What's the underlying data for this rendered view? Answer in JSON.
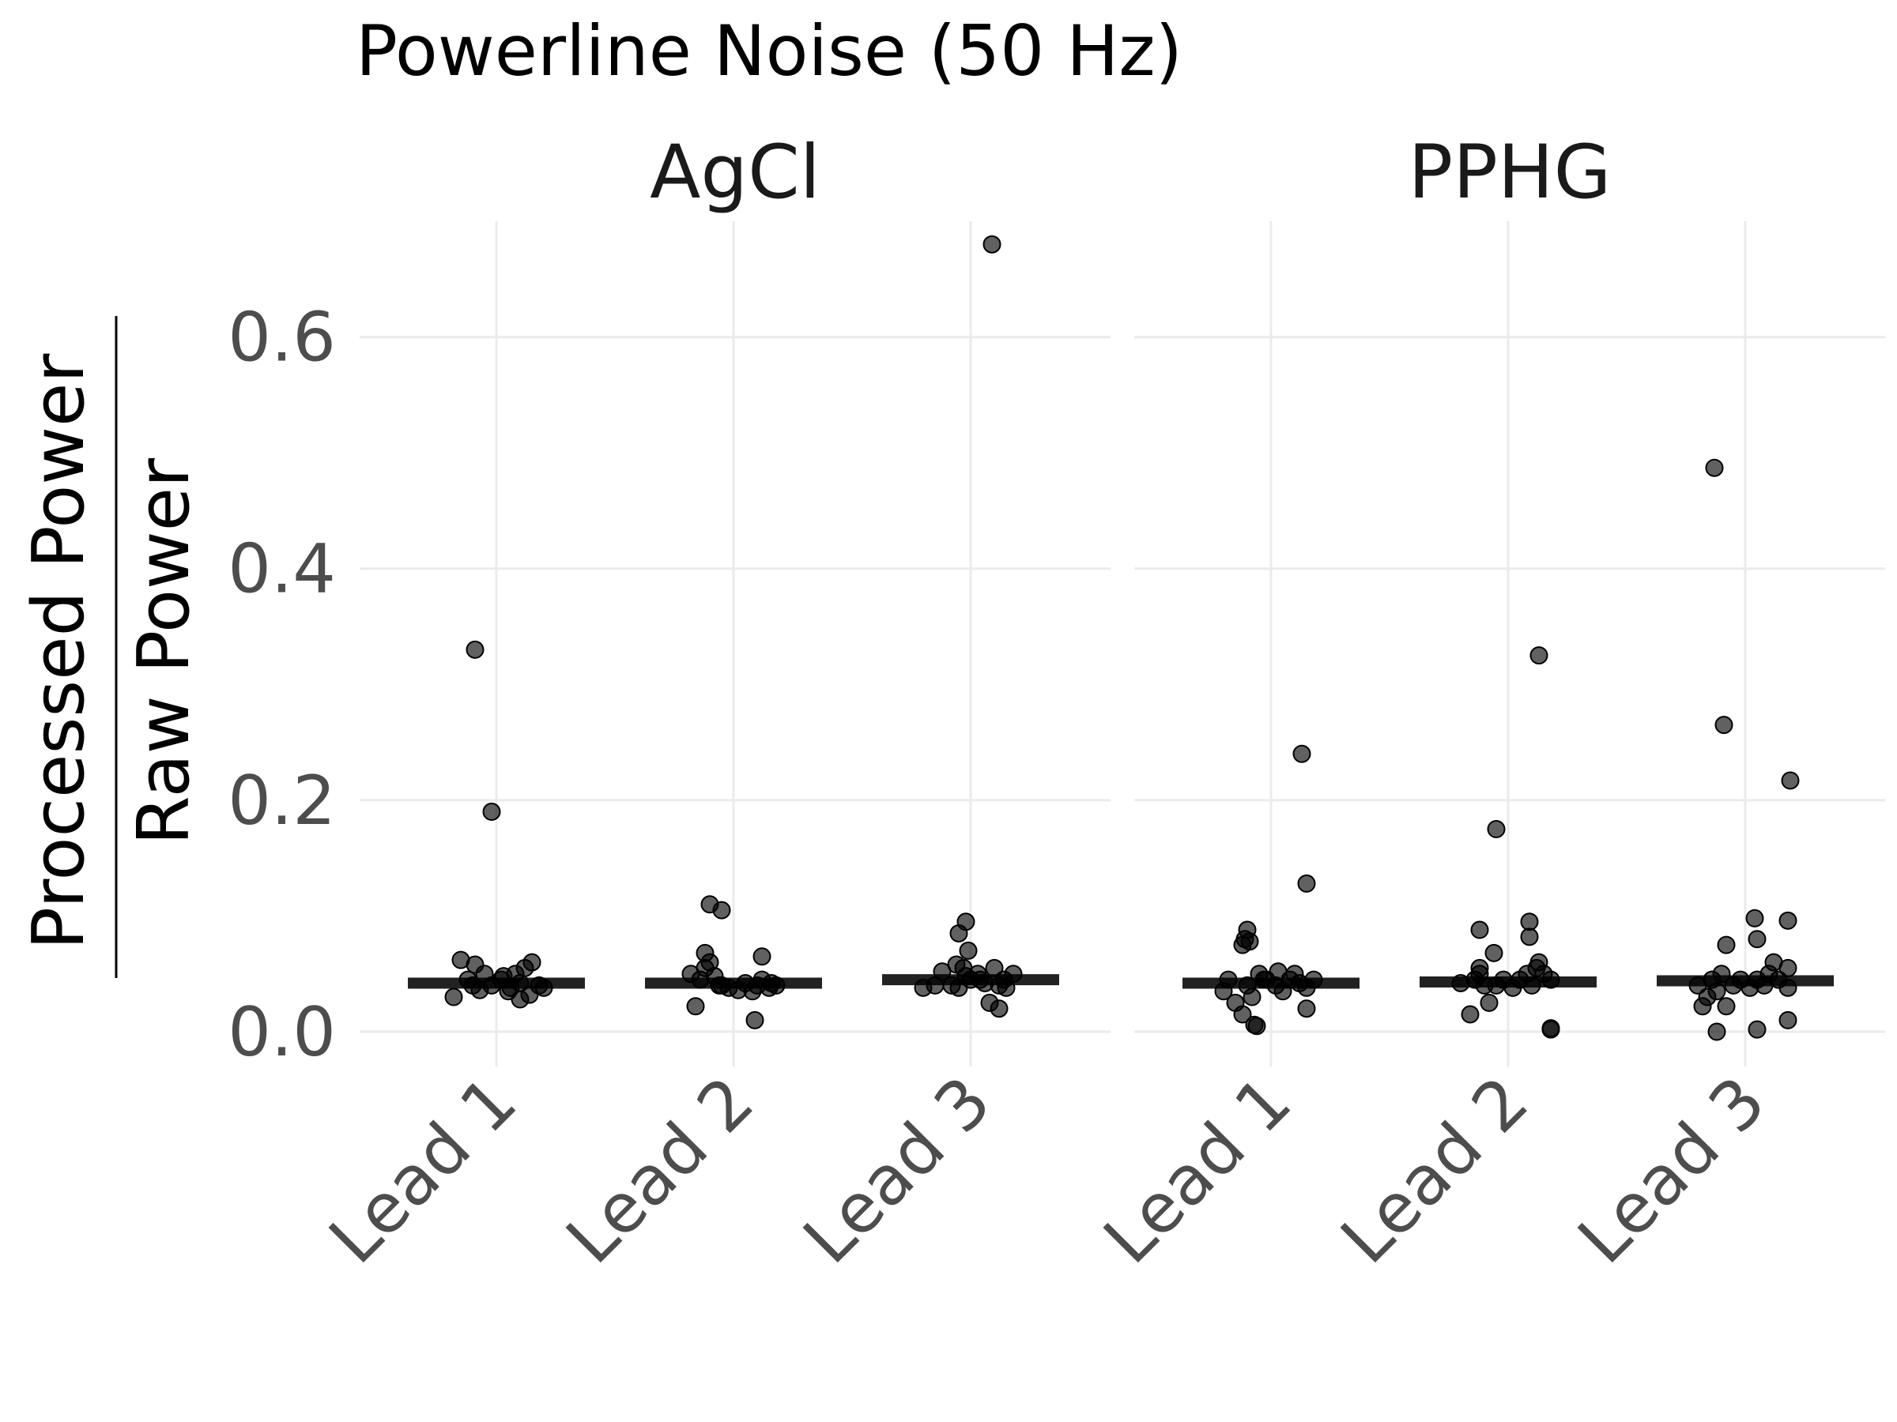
{
  "chart_data": {
    "type": "scatter",
    "title": "Powerline Noise (50 Hz)",
    "ylabel_numerator": "Processed Power",
    "ylabel_denominator": "Raw Power",
    "ylim": [
      -0.03,
      0.7
    ],
    "yticks": [
      0.0,
      0.2,
      0.4,
      0.6
    ],
    "ytick_labels": [
      "0.0",
      "0.2",
      "0.4",
      "0.6"
    ],
    "grid": true,
    "categories": [
      "Lead 1",
      "Lead 2",
      "Lead 3"
    ],
    "panels": [
      {
        "name": "AgCl",
        "medians": [
          0.042,
          0.042,
          0.045
        ],
        "series": [
          {
            "category": "Lead 1",
            "points": [
              [
                -0.18,
                0.03
              ],
              [
                -0.12,
                0.045
              ],
              [
                -0.09,
                0.058
              ],
              [
                -0.15,
                0.062
              ],
              [
                -0.05,
                0.05
              ],
              [
                0.02,
                0.045
              ],
              [
                0.06,
                0.038
              ],
              [
                0.08,
                0.05
              ],
              [
                0.1,
                0.042
              ],
              [
                0.12,
                0.055
              ],
              [
                0.15,
                0.06
              ],
              [
                -0.02,
                0.04
              ],
              [
                0.05,
                0.035
              ],
              [
                -0.07,
                0.036
              ],
              [
                0.18,
                0.04
              ],
              [
                0.03,
                0.048
              ],
              [
                -0.1,
                0.04
              ],
              [
                0.14,
                0.032
              ],
              [
                0.1,
                0.028
              ],
              [
                0.2,
                0.038
              ],
              [
                -0.09,
                0.33
              ],
              [
                -0.02,
                0.19
              ]
            ]
          },
          {
            "category": "Lead 2",
            "points": [
              [
                -0.18,
                0.05
              ],
              [
                -0.16,
                0.022
              ],
              [
                -0.14,
                0.045
              ],
              [
                -0.12,
                0.055
              ],
              [
                -0.1,
                0.06
              ],
              [
                -0.08,
                0.048
              ],
              [
                -0.05,
                0.04
              ],
              [
                -0.02,
                0.038
              ],
              [
                0.02,
                0.036
              ],
              [
                0.05,
                0.042
              ],
              [
                0.08,
                0.035
              ],
              [
                0.1,
                0.04
              ],
              [
                0.12,
                0.045
              ],
              [
                0.15,
                0.038
              ],
              [
                0.16,
                0.042
              ],
              [
                0.18,
                0.04
              ],
              [
                -0.06,
                0.04
              ],
              [
                0.09,
                0.01
              ],
              [
                0.12,
                0.065
              ],
              [
                -0.12,
                0.068
              ],
              [
                -0.1,
                0.11
              ],
              [
                -0.05,
                0.105
              ]
            ]
          },
          {
            "category": "Lead 3",
            "points": [
              [
                -0.2,
                0.038
              ],
              [
                -0.15,
                0.04
              ],
              [
                -0.12,
                0.052
              ],
              [
                -0.08,
                0.04
              ],
              [
                -0.05,
                0.038
              ],
              [
                -0.02,
                0.048
              ],
              [
                0.0,
                0.045
              ],
              [
                0.03,
                0.05
              ],
              [
                0.06,
                0.042
              ],
              [
                0.1,
                0.055
              ],
              [
                0.12,
                0.04
              ],
              [
                0.15,
                0.038
              ],
              [
                0.18,
                0.05
              ],
              [
                0.08,
                0.025
              ],
              [
                0.12,
                0.02
              ],
              [
                -0.03,
                0.055
              ],
              [
                -0.06,
                0.058
              ],
              [
                0.04,
                0.045
              ],
              [
                0.14,
                0.045
              ],
              [
                -0.05,
                0.085
              ],
              [
                -0.02,
                0.095
              ],
              [
                -0.01,
                0.07
              ],
              [
                0.09,
                0.68
              ]
            ]
          }
        ]
      },
      {
        "name": "PPHG",
        "medians": [
          0.042,
          0.043,
          0.044
        ],
        "series": [
          {
            "category": "Lead 1",
            "points": [
              [
                -0.2,
                0.035
              ],
              [
                -0.18,
                0.045
              ],
              [
                -0.15,
                0.025
              ],
              [
                -0.12,
                0.015
              ],
              [
                -0.1,
                0.04
              ],
              [
                -0.08,
                0.03
              ],
              [
                -0.05,
                0.05
              ],
              [
                -0.02,
                0.045
              ],
              [
                0.02,
                0.04
              ],
              [
                0.05,
                0.035
              ],
              [
                0.08,
                0.045
              ],
              [
                0.1,
                0.05
              ],
              [
                0.12,
                0.042
              ],
              [
                0.15,
                0.038
              ],
              [
                0.18,
                0.045
              ],
              [
                0.15,
                0.02
              ],
              [
                -0.06,
                0.005
              ],
              [
                -0.07,
                0.006
              ],
              [
                -0.03,
                0.045
              ],
              [
                0.03,
                0.052
              ],
              [
                -0.09,
                0.078
              ],
              [
                -0.11,
                0.08
              ],
              [
                -0.12,
                0.075
              ],
              [
                -0.1,
                0.088
              ],
              [
                0.15,
                0.128
              ],
              [
                0.13,
                0.24
              ]
            ]
          },
          {
            "category": "Lead 2",
            "points": [
              [
                -0.2,
                0.042
              ],
              [
                -0.16,
                0.015
              ],
              [
                -0.14,
                0.045
              ],
              [
                -0.12,
                0.05
              ],
              [
                -0.1,
                0.04
              ],
              [
                -0.08,
                0.025
              ],
              [
                -0.05,
                0.04
              ],
              [
                -0.02,
                0.045
              ],
              [
                0.02,
                0.038
              ],
              [
                0.05,
                0.045
              ],
              [
                0.08,
                0.05
              ],
              [
                0.1,
                0.04
              ],
              [
                0.12,
                0.055
              ],
              [
                0.15,
                0.05
              ],
              [
                0.18,
                0.045
              ],
              [
                0.13,
                0.06
              ],
              [
                0.18,
                0.003
              ],
              [
                0.18,
                0.002
              ],
              [
                -0.12,
                0.055
              ],
              [
                -0.06,
                0.068
              ],
              [
                0.09,
                0.082
              ],
              [
                0.09,
                0.095
              ],
              [
                -0.12,
                0.088
              ],
              [
                -0.05,
                0.175
              ],
              [
                0.13,
                0.325
              ]
            ]
          },
          {
            "category": "Lead 3",
            "points": [
              [
                -0.2,
                0.04
              ],
              [
                -0.18,
                0.022
              ],
              [
                -0.16,
                0.03
              ],
              [
                -0.14,
                0.045
              ],
              [
                -0.12,
                0.035
              ],
              [
                -0.1,
                0.05
              ],
              [
                -0.08,
                0.022
              ],
              [
                -0.05,
                0.04
              ],
              [
                -0.02,
                0.045
              ],
              [
                0.02,
                0.038
              ],
              [
                0.05,
                0.045
              ],
              [
                0.08,
                0.04
              ],
              [
                0.1,
                0.05
              ],
              [
                0.14,
                0.045
              ],
              [
                0.18,
                0.038
              ],
              [
                0.18,
                0.055
              ],
              [
                0.12,
                0.06
              ],
              [
                0.05,
                0.08
              ],
              [
                -0.08,
                0.075
              ],
              [
                0.04,
                0.098
              ],
              [
                0.18,
                0.096
              ],
              [
                -0.12,
                0.0
              ],
              [
                0.05,
                0.002
              ],
              [
                0.18,
                0.01
              ],
              [
                -0.13,
                0.487
              ],
              [
                -0.09,
                0.265
              ],
              [
                0.19,
                0.217
              ]
            ]
          }
        ]
      }
    ]
  }
}
